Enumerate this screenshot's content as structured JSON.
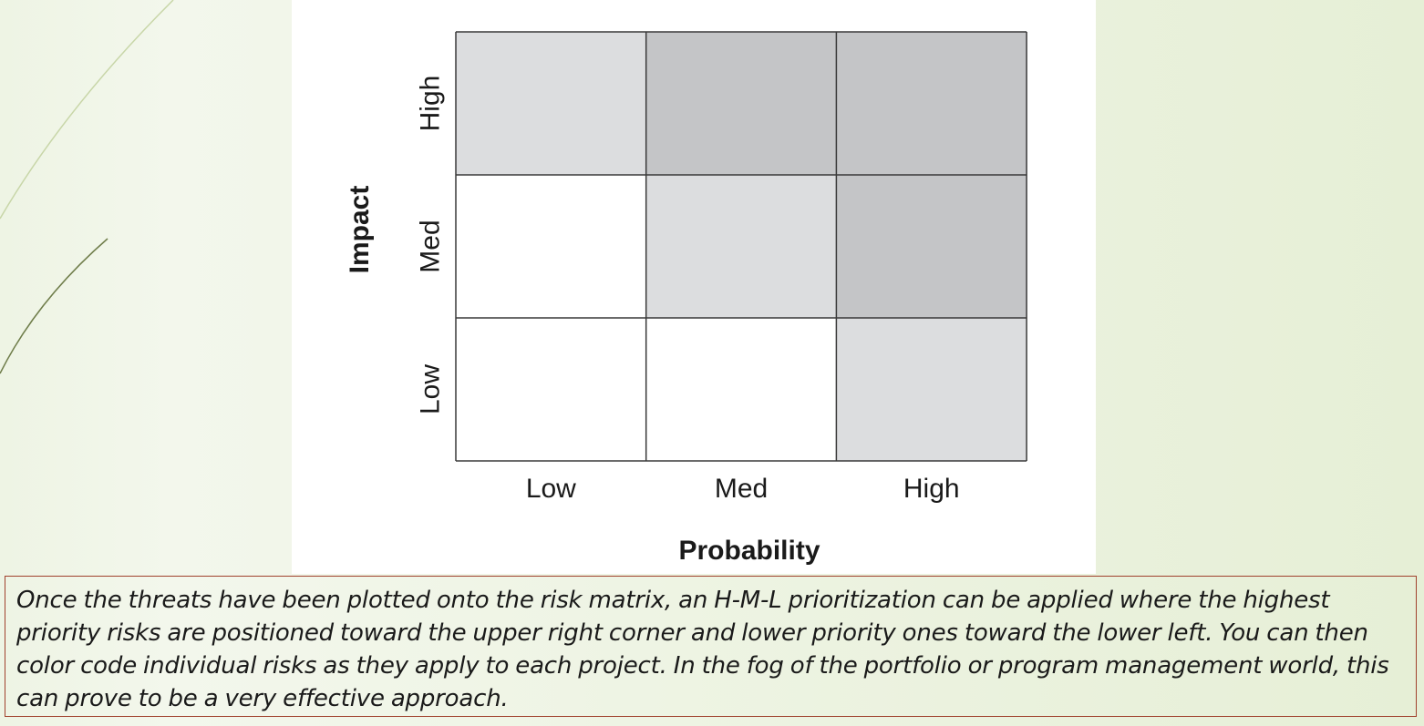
{
  "risk_matrix": {
    "x_axis_title": "Probability",
    "y_axis_title": "Impact",
    "x_levels": [
      "Low",
      "Med",
      "High"
    ],
    "y_levels": [
      "Low",
      "Med",
      "High"
    ],
    "cells": [
      {
        "probability": "Low",
        "impact": "High",
        "shade": "#dcdddf"
      },
      {
        "probability": "Med",
        "impact": "High",
        "shade": "#c4c5c7"
      },
      {
        "probability": "High",
        "impact": "High",
        "shade": "#c4c5c7"
      },
      {
        "probability": "Low",
        "impact": "Med",
        "shade": "#ffffff"
      },
      {
        "probability": "Med",
        "impact": "Med",
        "shade": "#dcdddf"
      },
      {
        "probability": "High",
        "impact": "Med",
        "shade": "#c4c5c7"
      },
      {
        "probability": "Low",
        "impact": "Low",
        "shade": "#ffffff"
      },
      {
        "probability": "Med",
        "impact": "Low",
        "shade": "#ffffff"
      },
      {
        "probability": "High",
        "impact": "Low",
        "shade": "#dcdddf"
      }
    ]
  },
  "caption": {
    "text": "Once the threats have been plotted onto the risk matrix, an H-M-L prioritization can be applied where the highest priority risks are positioned toward the upper right corner and lower priority ones toward the lower left. You can then color code individual risks as they apply to each project. In the fog of the portfolio or program management world, this can prove to be a very effective approach."
  },
  "colors": {
    "gridline": "#3a3a3a",
    "caption_border": "#a0412d",
    "deco_line": "#7a8a52"
  }
}
